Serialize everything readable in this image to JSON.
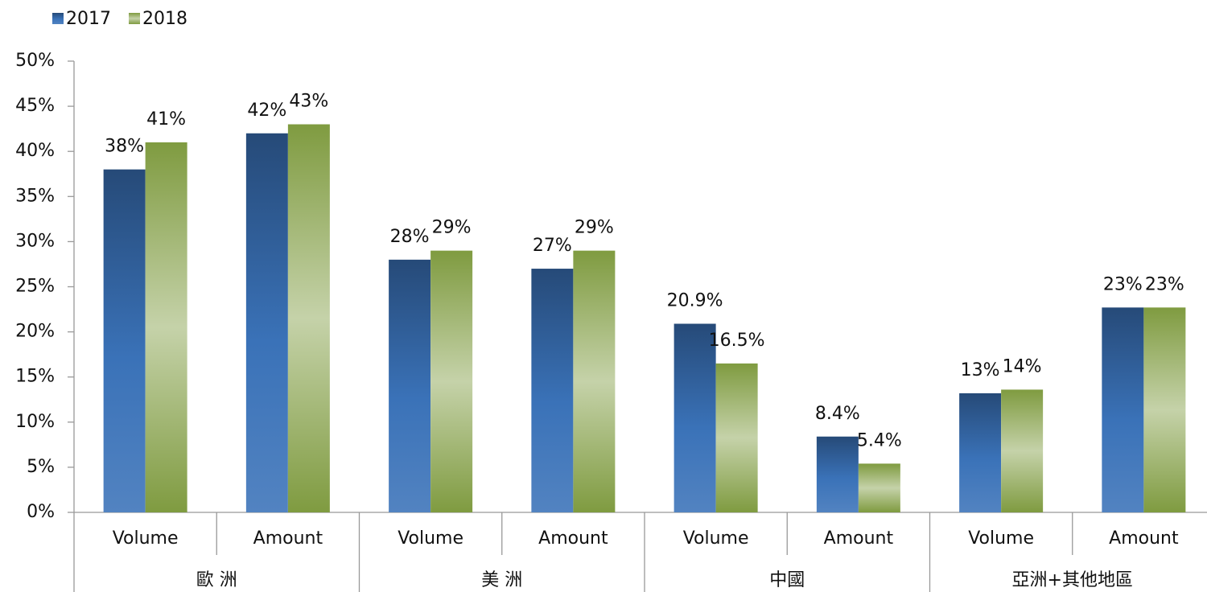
{
  "chart_data": {
    "type": "bar",
    "categories": [
      "Volume",
      "Amount",
      "Volume",
      "Amount",
      "Volume",
      "Amount",
      "Volume",
      "Amount"
    ],
    "groups": [
      "歐 洲",
      "美 洲",
      "中國",
      "亞洲+其他地區"
    ],
    "series": [
      {
        "name": "2017",
        "color": "#3a72b8",
        "values": [
          38,
          42,
          28,
          27,
          20.9,
          8.4,
          13.2,
          22.7
        ],
        "value_labels": [
          "38%",
          "42%",
          "28%",
          "27%",
          "20.9%",
          "8.4%",
          "13%",
          "23%"
        ]
      },
      {
        "name": "2018",
        "color": "#7f9b40",
        "values": [
          41,
          43,
          29,
          29,
          16.5,
          5.4,
          13.6,
          22.7
        ],
        "value_labels": [
          "41%",
          "43%",
          "29%",
          "29%",
          "16.5%",
          "5.4%",
          "14%",
          "23%"
        ]
      }
    ],
    "ylim": [
      0,
      50
    ],
    "yticks": [
      {
        "value": 0,
        "label": "0%"
      },
      {
        "value": 5,
        "label": "5%"
      },
      {
        "value": 10,
        "label": "10%"
      },
      {
        "value": 15,
        "label": "15%"
      },
      {
        "value": 20,
        "label": "20%"
      },
      {
        "value": 25,
        "label": "25%"
      },
      {
        "value": 30,
        "label": "30%"
      },
      {
        "value": 35,
        "label": "35%"
      },
      {
        "value": 40,
        "label": "40%"
      },
      {
        "value": 45,
        "label": "45%"
      },
      {
        "value": 50,
        "label": "50%"
      }
    ],
    "legend": "top-left",
    "grid": false
  }
}
